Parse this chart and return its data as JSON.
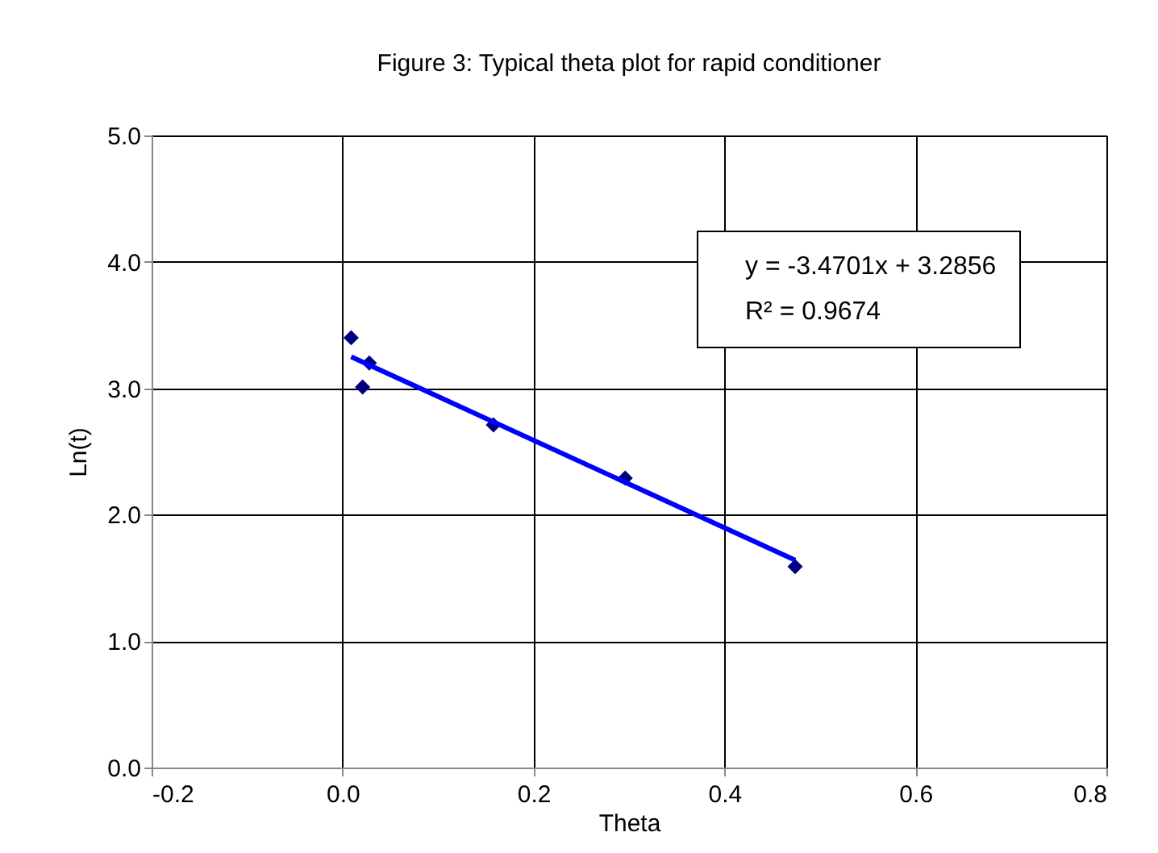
{
  "chart_data": {
    "type": "scatter",
    "title": "Figure 3: Typical theta plot for rapid conditioner",
    "xlabel": "Theta",
    "ylabel": "Ln(t)",
    "series": [
      {
        "color": "#000080",
        "marker": "diamond",
        "x": [
          0.009,
          0.028,
          0.021,
          0.158,
          0.296,
          0.474
        ],
        "values": [
          3.4,
          3.2,
          3.01,
          2.71,
          2.29,
          1.59
        ]
      },
      {
        "type": "line",
        "color": "#0000ff",
        "line_style": "solid",
        "marker": "none",
        "x": [
          0.009,
          0.474
        ],
        "values": [
          3.25,
          1.64
        ]
      }
    ],
    "annotations": [
      "y = -3.4701x + 3.2856",
      "R² = 0.9674"
    ],
    "xlim": [
      -0.2,
      0.8
    ],
    "xticks": [
      {
        "value": -0.2,
        "label": "-0.2"
      },
      {
        "value": 0,
        "label": "0.0"
      },
      {
        "value": 0.2,
        "label": "0.2"
      },
      {
        "value": 0.4,
        "label": "0.4"
      },
      {
        "value": 0.6,
        "label": "0.6"
      },
      {
        "value": 0.8,
        "label": "0.8"
      }
    ],
    "ylim": [
      0,
      5
    ],
    "yticks": [
      {
        "value": 0,
        "label": "0.0"
      },
      {
        "value": 1,
        "label": "1.0"
      },
      {
        "value": 2,
        "label": "2.0"
      },
      {
        "value": 3,
        "label": "3.0"
      },
      {
        "value": 4,
        "label": "4.0"
      },
      {
        "value": 5,
        "label": "5.0"
      }
    ],
    "grid": true
  }
}
